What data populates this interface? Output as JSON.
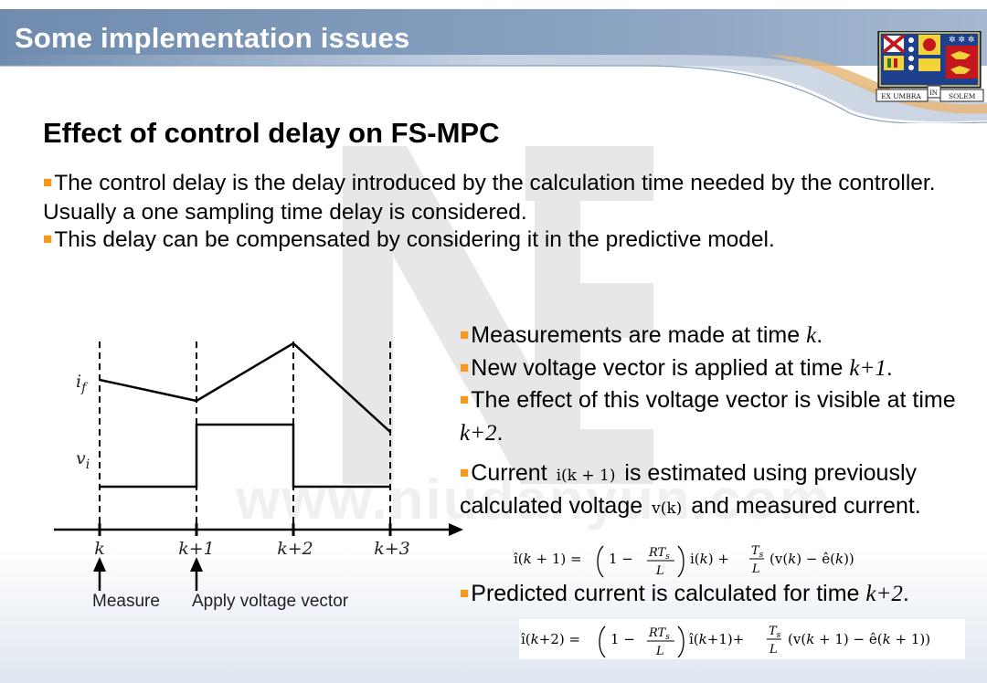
{
  "header": {
    "title": "Some implementation issues"
  },
  "crest": {
    "motto_left": "EX UMBRA",
    "motto_mid": "IN",
    "motto_right": "SOLEM"
  },
  "watermark": {
    "text": "www.niudanyun.com"
  },
  "heading": "Effect of control delay on FS-MPC",
  "intro": {
    "line1": "The control delay is the delay introduced by the calculation time needed by the controller.  Usually a one sampling time delay is considered.",
    "line2": "This delay can be compensated by considering it in the predictive model."
  },
  "points": {
    "p1_text": "Measurements are made at time ",
    "p1_var": "k",
    "p1_end": ".",
    "p2_text": "New voltage vector is applied at time ",
    "p2_var": "k+1",
    "p2_end": ".",
    "p3_text": "The effect of this voltage vector is visible at time ",
    "p3_var": "k+2",
    "p3_end": ".",
    "p4_a": "Current ",
    "p4_m1": "i(k + 1)",
    "p4_b": " is estimated using previously calculated voltage ",
    "p4_m2": "v(k)",
    "p4_c": " and measured current.",
    "p5_text": "Predicted current is calculated for time ",
    "p5_var": "k+2",
    "p5_end": "."
  },
  "diagram": {
    "if_label": "i_f",
    "vi_label": "v_i",
    "ticks": [
      "k",
      "k+1",
      "k+2",
      "k+3"
    ],
    "measure_label": "Measure",
    "apply_label": "Apply voltage vector"
  }
}
